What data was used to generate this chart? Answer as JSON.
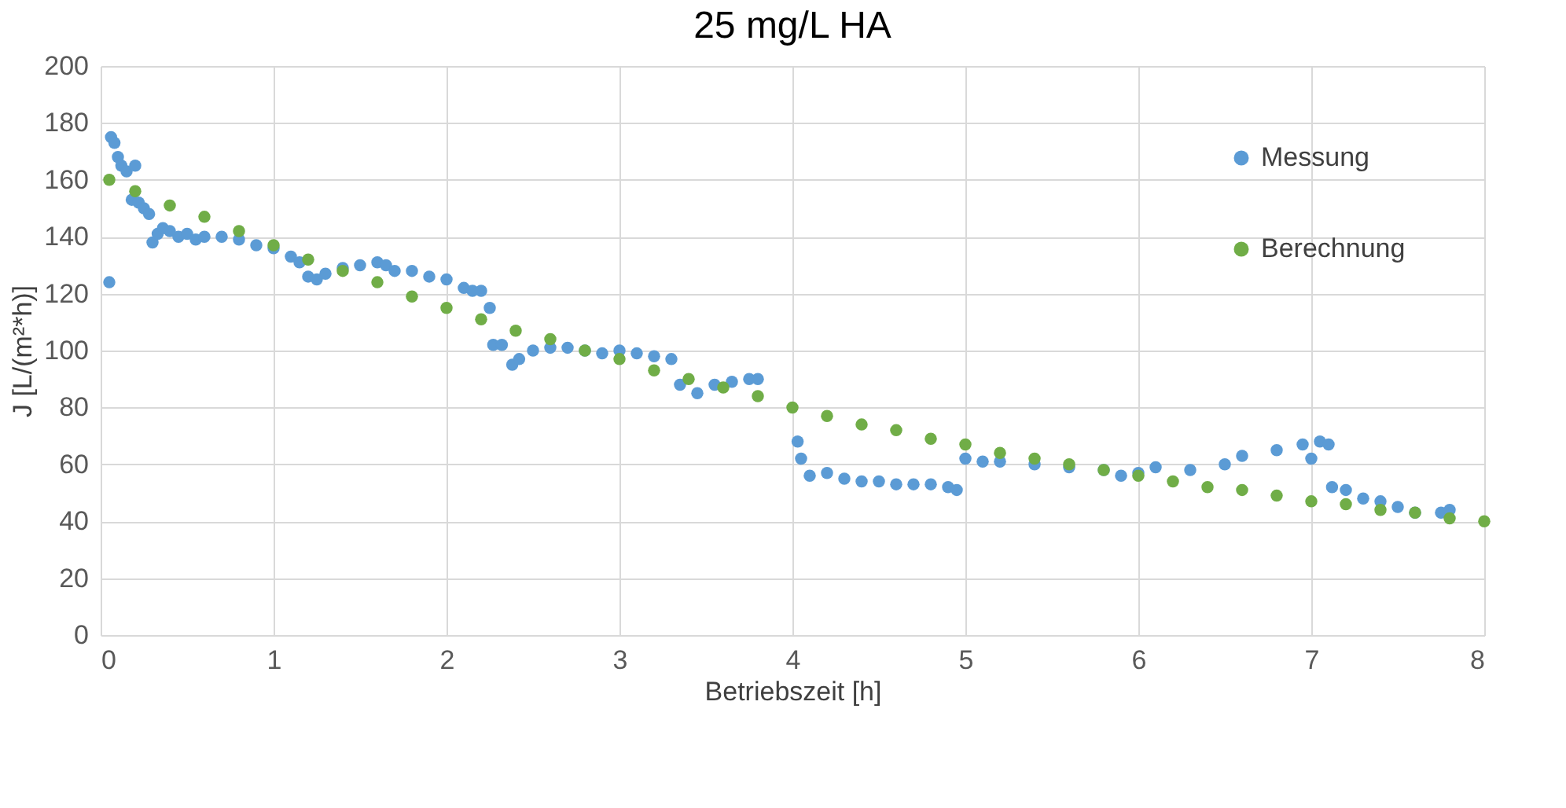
{
  "chart_data": {
    "type": "scatter",
    "title": "25 mg/L HA",
    "xlabel": "Betriebszeit [h]",
    "ylabel": "J [L/(m²*h)]",
    "xlim": [
      0,
      8
    ],
    "xticks": [
      0,
      1,
      2,
      3,
      4,
      5,
      6,
      7,
      8
    ],
    "ylim": [
      0,
      200
    ],
    "yticks": [
      0,
      20,
      40,
      60,
      80,
      100,
      120,
      140,
      160,
      180,
      200
    ],
    "grid": true,
    "legend": "top right",
    "marker": "circle",
    "series": [
      {
        "name": "Messung",
        "color": "#5b9bd5",
        "x": [
          0.05,
          0.06,
          0.08,
          0.1,
          0.12,
          0.15,
          0.2,
          0.18,
          0.22,
          0.25,
          0.28,
          0.3,
          0.33,
          0.36,
          0.4,
          0.45,
          0.5,
          0.55,
          0.6,
          0.7,
          0.8,
          0.9,
          1.0,
          1.1,
          1.15,
          1.2,
          1.25,
          1.3,
          1.4,
          1.5,
          1.6,
          1.65,
          1.7,
          1.8,
          1.9,
          2.0,
          2.1,
          2.15,
          2.2,
          2.25,
          2.27,
          2.32,
          2.38,
          2.42,
          2.5,
          2.6,
          2.7,
          2.8,
          2.9,
          3.0,
          3.1,
          3.2,
          3.3,
          3.35,
          3.45,
          3.55,
          3.65,
          3.75,
          3.8,
          4.03,
          4.05,
          4.1,
          4.2,
          4.3,
          4.4,
          4.5,
          4.6,
          4.7,
          4.8,
          4.9,
          4.95,
          5.0,
          5.1,
          5.2,
          5.4,
          5.6,
          5.8,
          5.9,
          6.0,
          6.1,
          6.3,
          6.5,
          6.6,
          6.8,
          6.95,
          7.0,
          7.05,
          7.1,
          7.12,
          7.2,
          7.3,
          7.4,
          7.5,
          7.6,
          7.75,
          7.8
        ],
        "values": [
          124,
          175,
          173,
          168,
          165,
          163,
          165,
          153,
          152,
          150,
          148,
          138,
          141,
          143,
          142,
          140,
          141,
          139,
          140,
          140,
          139,
          137,
          136,
          133,
          131,
          126,
          125,
          127,
          129,
          130,
          131,
          130,
          128,
          128,
          126,
          125,
          122,
          121,
          121,
          115,
          102,
          102,
          95,
          97,
          100,
          101,
          101,
          100,
          99,
          100,
          99,
          98,
          97,
          88,
          85,
          88,
          89,
          90,
          90,
          68,
          62,
          56,
          57,
          55,
          54,
          54,
          53,
          53,
          53,
          52,
          51,
          62,
          61,
          61,
          60,
          59,
          58,
          56,
          57,
          59,
          58,
          60,
          63,
          65,
          67,
          62,
          68,
          67,
          52,
          51,
          48,
          47,
          45,
          43,
          43,
          44
        ]
      },
      {
        "name": "Berechnung",
        "color": "#70ad47",
        "x": [
          0.05,
          0.2,
          0.4,
          0.6,
          0.8,
          1.0,
          1.2,
          1.4,
          1.6,
          1.8,
          2.0,
          2.2,
          2.4,
          2.6,
          2.8,
          3.0,
          3.2,
          3.4,
          3.6,
          3.8,
          4.0,
          4.2,
          4.4,
          4.6,
          4.8,
          5.0,
          5.2,
          5.4,
          5.6,
          5.8,
          6.0,
          6.2,
          6.4,
          6.6,
          6.8,
          7.0,
          7.2,
          7.4,
          7.6,
          7.8,
          8.0
        ],
        "values": [
          160,
          156,
          151,
          147,
          142,
          137,
          132,
          128,
          124,
          119,
          115,
          111,
          107,
          104,
          100,
          97,
          93,
          90,
          87,
          84,
          80,
          77,
          74,
          72,
          69,
          67,
          64,
          62,
          60,
          58,
          56,
          54,
          52,
          51,
          49,
          47,
          46,
          44,
          43,
          41,
          40
        ]
      }
    ]
  }
}
